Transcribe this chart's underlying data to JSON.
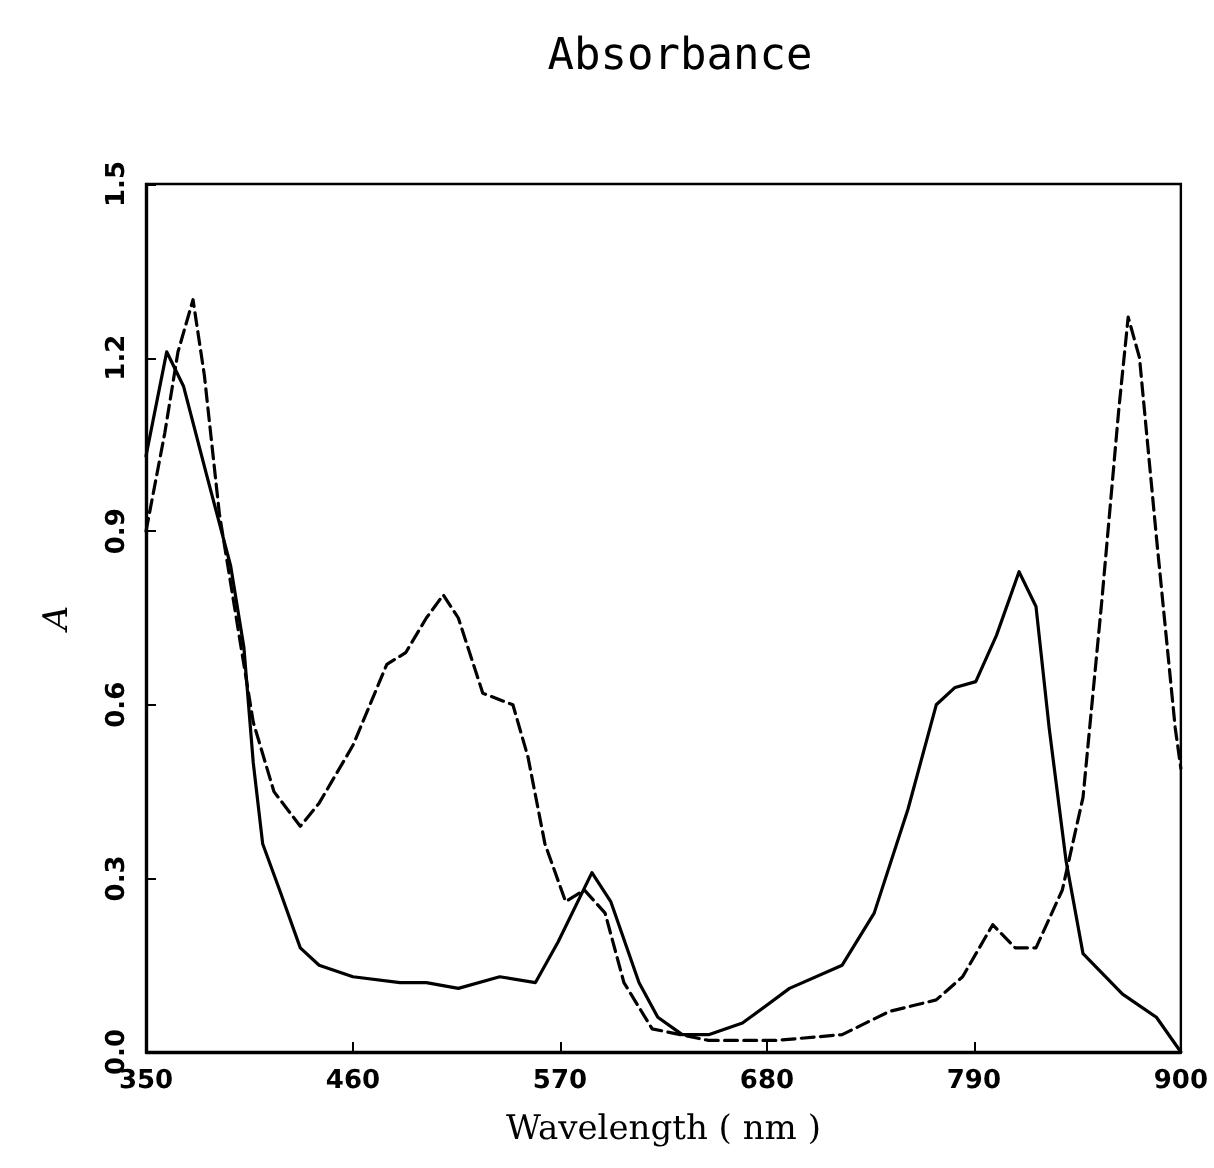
{
  "chart_data": {
    "type": "line",
    "title": "Absorbance",
    "xlabel": "Wavelength ( nm )",
    "ylabel": "A",
    "xlim": [
      350,
      900
    ],
    "xticks": [
      350,
      460,
      570,
      680,
      790,
      900
    ],
    "ylim": [
      0,
      1.5
    ],
    "yticks": [
      {
        "value": 0,
        "label": "0.0"
      },
      {
        "value": 0.3,
        "label": "0.3"
      },
      {
        "value": 0.6,
        "label": "0.6"
      },
      {
        "value": 0.9,
        "label": "0.9"
      },
      {
        "value": 1.2,
        "label": "1.2"
      },
      {
        "value": 1.5,
        "label": "1.5"
      }
    ],
    "grid": false,
    "marker": "none",
    "series": [
      {
        "color": "#000000",
        "line_style": "solid",
        "x": [
          350,
          361,
          370,
          382,
          395,
          402,
          407,
          412,
          421,
          432,
          442,
          460,
          485,
          499,
          516,
          538,
          557,
          569,
          587,
          597,
          612,
          622,
          635,
          649,
          667,
          692,
          720,
          737,
          755,
          770,
          780,
          791,
          802,
          814,
          823,
          830,
          839,
          848,
          869,
          887,
          900
        ],
        "values": [
          1.03,
          1.21,
          1.15,
          1.0,
          0.84,
          0.7,
          0.5,
          0.36,
          0.28,
          0.18,
          0.15,
          0.13,
          0.12,
          0.12,
          0.11,
          0.13,
          0.12,
          0.19,
          0.31,
          0.26,
          0.12,
          0.06,
          0.03,
          0.03,
          0.05,
          0.11,
          0.15,
          0.24,
          0.42,
          0.6,
          0.63,
          0.64,
          0.72,
          0.83,
          0.77,
          0.56,
          0.33,
          0.17,
          0.1,
          0.06,
          0.0
        ]
      },
      {
        "color": "#000000",
        "line_style": "dashed",
        "x": [
          350,
          360,
          367,
          375,
          381,
          389,
          398,
          407,
          418,
          432,
          442,
          460,
          478,
          488,
          499,
          508,
          516,
          529,
          545,
          553,
          562,
          573,
          583,
          594,
          604,
          619,
          649,
          685,
          720,
          745,
          770,
          784,
          800,
          812,
          823,
          837,
          848,
          858,
          867,
          872,
          878,
          887,
          897,
          900
        ],
        "values": [
          0.9,
          1.07,
          1.21,
          1.3,
          1.17,
          0.93,
          0.75,
          0.57,
          0.45,
          0.39,
          0.43,
          0.53,
          0.67,
          0.69,
          0.75,
          0.79,
          0.75,
          0.62,
          0.6,
          0.51,
          0.36,
          0.26,
          0.28,
          0.24,
          0.12,
          0.04,
          0.02,
          0.02,
          0.03,
          0.07,
          0.09,
          0.13,
          0.22,
          0.18,
          0.18,
          0.28,
          0.44,
          0.78,
          1.11,
          1.27,
          1.2,
          0.89,
          0.56,
          0.49
        ]
      }
    ]
  }
}
